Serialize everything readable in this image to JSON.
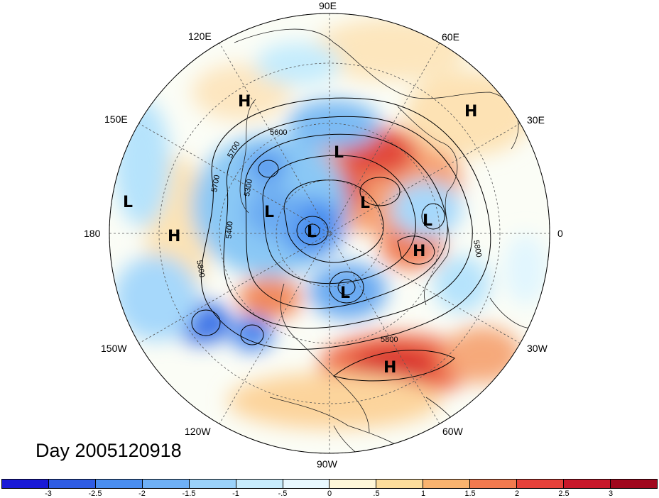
{
  "title": "Day 2005120918",
  "longitude_labels": [
    "90E",
    "60E",
    "30E",
    "0",
    "30W",
    "60W",
    "90W",
    "120W",
    "150W",
    "180",
    "150E",
    "120E"
  ],
  "pressure_systems": [
    "H",
    "H",
    "H",
    "H",
    "H",
    "L",
    "L",
    "L",
    "L",
    "L",
    "L",
    "L"
  ],
  "contour_labels": [
    "5600",
    "5700",
    "5300",
    "5400",
    "5700",
    "5800",
    "5800",
    "5800"
  ],
  "colorbar": {
    "labels": [
      "-3",
      "-2.5",
      "-2",
      "-1.5",
      "-1",
      "-.5",
      "0",
      ".5",
      "1",
      "1.5",
      "2",
      "2.5",
      "3"
    ],
    "colors": [
      "#1a1ad6",
      "#2f5ce3",
      "#4a8ef0",
      "#6fb0f5",
      "#9bd2fa",
      "#c8ecfd",
      "#e8f8ff",
      "#fff7d9",
      "#fddd9c",
      "#f9b36f",
      "#f27a4f",
      "#e6413a",
      "#c8182a",
      "#a0071d"
    ]
  },
  "map_colors": {
    "ocean_base": "#f3faff",
    "dash": "#555555",
    "contour": "#000000"
  }
}
